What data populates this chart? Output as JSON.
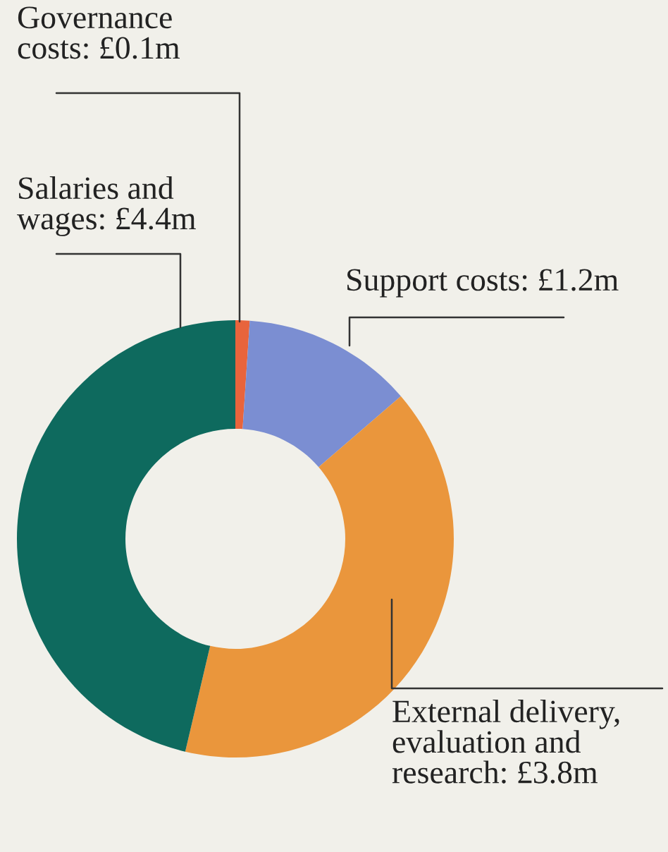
{
  "chart_data": {
    "type": "donut",
    "categories": [
      "Governance\ncosts",
      "Support costs",
      "External delivery,\nevaluation and\nresearch",
      "Salaries and\nwages"
    ],
    "values": [
      0.1,
      1.2,
      3.8,
      4.4
    ],
    "value_labels": [
      "£0.1m",
      "£1.2m",
      "£3.8m",
      "£4.4m"
    ],
    "colors": [
      "#e8643c",
      "#7b8ed2",
      "#ea963c",
      "#0e6a5e"
    ],
    "legend": false
  }
}
